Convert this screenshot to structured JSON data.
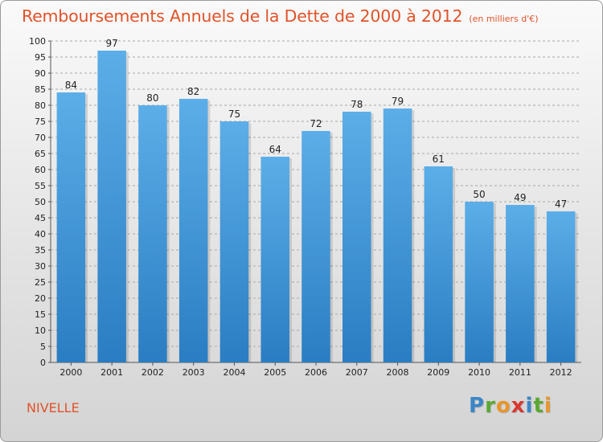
{
  "header": {
    "title": "Remboursements Annuels de la Dette de 2000 à 2012",
    "subtitle": "(en milliers d'€)"
  },
  "footer": {
    "place": "NIVELLE",
    "logo_letters": [
      {
        "char": "P",
        "color": "#3b86c6"
      },
      {
        "char": "r",
        "color": "#5aa832"
      },
      {
        "char": "o",
        "color": "#e8962b"
      },
      {
        "char": "x",
        "color": "#d8372f"
      },
      {
        "char": "i",
        "color": "#3b86c6"
      },
      {
        "char": "t",
        "color": "#5aa832"
      },
      {
        "char": "i",
        "color": "#e8962b"
      }
    ]
  },
  "colors": {
    "title": "#e0532a",
    "bar_top": "#5caee8",
    "bar_bottom": "#2a7dc2",
    "grid": "#a8a8a8",
    "text": "#222222"
  },
  "chart_data": {
    "type": "bar",
    "title": "Remboursements Annuels de la Dette de 2000 à 2012",
    "subtitle": "(en milliers d'€)",
    "categories": [
      "2000",
      "2001",
      "2002",
      "2003",
      "2004",
      "2005",
      "2006",
      "2007",
      "2008",
      "2009",
      "2010",
      "2011",
      "2012"
    ],
    "values": [
      84,
      97,
      80,
      82,
      75,
      64,
      72,
      78,
      79,
      61,
      50,
      49,
      47
    ],
    "ylim": [
      0,
      100
    ],
    "yticks": [
      0,
      5,
      10,
      15,
      20,
      25,
      30,
      35,
      40,
      45,
      50,
      55,
      60,
      65,
      70,
      75,
      80,
      85,
      90,
      95,
      100
    ],
    "grid": true,
    "grid_style": "dashed",
    "data_labels": true
  }
}
